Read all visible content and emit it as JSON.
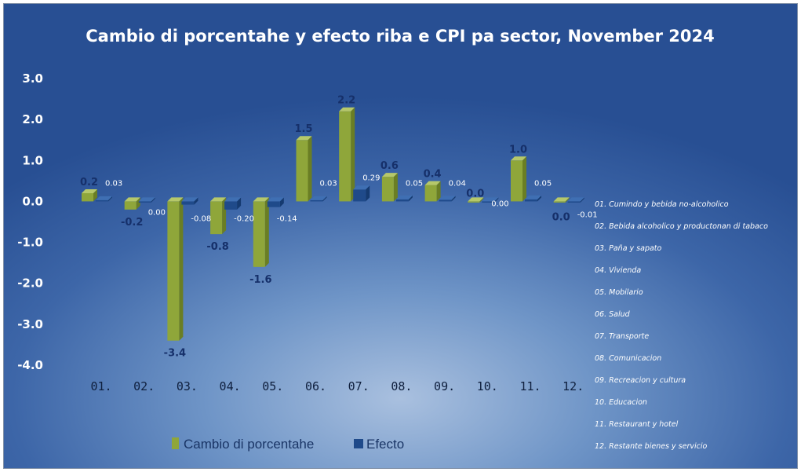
{
  "chart_data": {
    "type": "bar",
    "title": "Cambio di porcentahe y efecto riba e CPI pa sector, November 2024",
    "categories": [
      "01.",
      "02.",
      "03.",
      "04.",
      "05.",
      "06.",
      "07.",
      "08.",
      "09.",
      "10.",
      "11.",
      "12."
    ],
    "series": [
      {
        "name": "Cambio di porcentahe",
        "values": [
          0.2,
          -0.2,
          -3.4,
          -0.8,
          -1.6,
          1.5,
          2.2,
          0.6,
          0.4,
          0.0,
          1.0,
          0.0
        ],
        "labels": [
          "0.2",
          "-0.2",
          "-3.4",
          "-0.8",
          "-1.6",
          "1.5",
          "2.2",
          "0.6",
          "0.4",
          "0.0",
          "1.0",
          "0.0"
        ]
      },
      {
        "name": "Efecto",
        "values": [
          0.03,
          0.0,
          -0.08,
          -0.2,
          -0.14,
          0.03,
          0.29,
          0.05,
          0.04,
          0.0,
          0.05,
          -0.01
        ],
        "labels": [
          "0.03",
          "0.00",
          "-0.08",
          "-0.20",
          "-0.14",
          "0.03",
          "0.29",
          "0.05",
          "0.04",
          "0.00",
          "0.05",
          "-0.01"
        ]
      }
    ],
    "yticks": [
      "3.0",
      "2.0",
      "1.0",
      "0.0",
      "-1.0",
      "-2.0",
      "-3.0",
      "-4.0"
    ],
    "ylim": [
      -4.0,
      3.0
    ],
    "grid": false,
    "legend_position": "bottom",
    "colors": {
      "cambio": "#8fa63a",
      "efecto": "#1f4a8a"
    },
    "sector_legend": [
      "01. Cumindo y bebida no-alcoholico",
      "02. Bebida alcoholico y productonan di tabaco",
      "03. Paña y sapato",
      "04. Vivienda",
      "05. Mobilario",
      "06. Salud",
      "07. Transporte",
      "08. Comunicacion",
      "09. Recreacion y cultura",
      "10. Educacion",
      "11. Restaurant y hotel",
      "12. Restante bienes y servicio"
    ]
  }
}
